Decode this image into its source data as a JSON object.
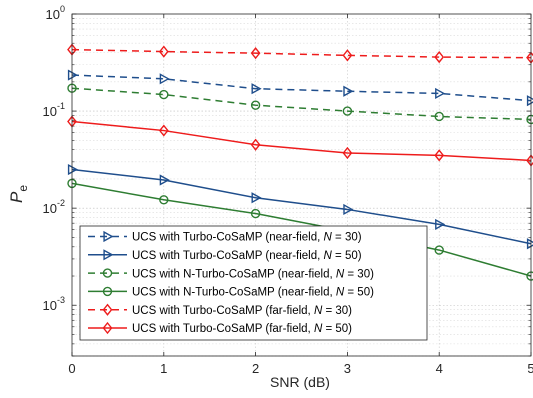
{
  "chart_data": {
    "type": "line",
    "xlabel": "SNR (dB)",
    "ylabel": {
      "main": "P",
      "sub": "e"
    },
    "x": [
      0,
      1,
      2,
      3,
      4,
      5
    ],
    "xlim": [
      0,
      5
    ],
    "ylim": [
      0.0003,
      1
    ],
    "yscale": "log",
    "x_tick_labels": [
      "0",
      "1",
      "2",
      "3",
      "4",
      "5"
    ],
    "y_ticks": [
      {
        "value": 0.001,
        "base": "10",
        "exp": "-3"
      },
      {
        "value": 0.01,
        "base": "10",
        "exp": "-2"
      },
      {
        "value": 0.1,
        "base": "10",
        "exp": "-1"
      },
      {
        "value": 1,
        "base": "10",
        "exp": "0"
      }
    ],
    "grid": true,
    "legend_position": "bottom-left",
    "series": [
      {
        "name": "UCS with Turbo-CoSaMP (near-field, N = 30)",
        "name_prefix": "UCS with Turbo-CoSaMP (near-field, ",
        "name_var": "N",
        "name_suffix": " = 30)",
        "color": "#1f4e8c",
        "dash": "dashed",
        "marker": "triangle-right",
        "values": [
          0.235,
          0.215,
          0.17,
          0.16,
          0.152,
          0.128
        ]
      },
      {
        "name": "UCS with Turbo-CoSaMP (near-field, N = 50)",
        "name_prefix": "UCS with Turbo-CoSaMP (near-field, ",
        "name_var": "N",
        "name_suffix": " = 50)",
        "color": "#1f4e8c",
        "dash": "solid",
        "marker": "triangle-right",
        "values": [
          0.025,
          0.0195,
          0.0128,
          0.0097,
          0.0068,
          0.0043
        ]
      },
      {
        "name": "UCS with N-Turbo-CoSaMP (near-field, N = 30)",
        "name_prefix": "UCS with N-Turbo-CoSaMP (near-field, ",
        "name_var": "N",
        "name_suffix": " = 30)",
        "color": "#2e7d32",
        "dash": "dashed",
        "marker": "circle",
        "values": [
          0.172,
          0.148,
          0.115,
          0.1,
          0.088,
          0.082
        ]
      },
      {
        "name": "UCS with N-Turbo-CoSaMP (near-field, N = 50)",
        "name_prefix": "UCS with N-Turbo-CoSaMP (near-field, ",
        "name_var": "N",
        "name_suffix": " = 50)",
        "color": "#2e7d32",
        "dash": "solid",
        "marker": "circle",
        "values": [
          0.018,
          0.0122,
          0.0088,
          0.0058,
          0.0037,
          0.002
        ]
      },
      {
        "name": "UCS with Turbo-CoSaMP (far-field, N = 30)",
        "name_prefix": "UCS with Turbo-CoSaMP (far-field, ",
        "name_var": "N",
        "name_suffix": " = 30)",
        "color": "#ee1c1c",
        "dash": "dashed",
        "marker": "diamond",
        "values": [
          0.43,
          0.41,
          0.395,
          0.375,
          0.36,
          0.355
        ]
      },
      {
        "name": "UCS with Turbo-CoSaMP (far-field, N = 50)",
        "name_prefix": "UCS with Turbo-CoSaMP (far-field, ",
        "name_var": "N",
        "name_suffix": " = 50)",
        "color": "#ee1c1c",
        "dash": "solid",
        "marker": "diamond",
        "values": [
          0.078,
          0.063,
          0.045,
          0.037,
          0.035,
          0.031
        ]
      }
    ]
  }
}
